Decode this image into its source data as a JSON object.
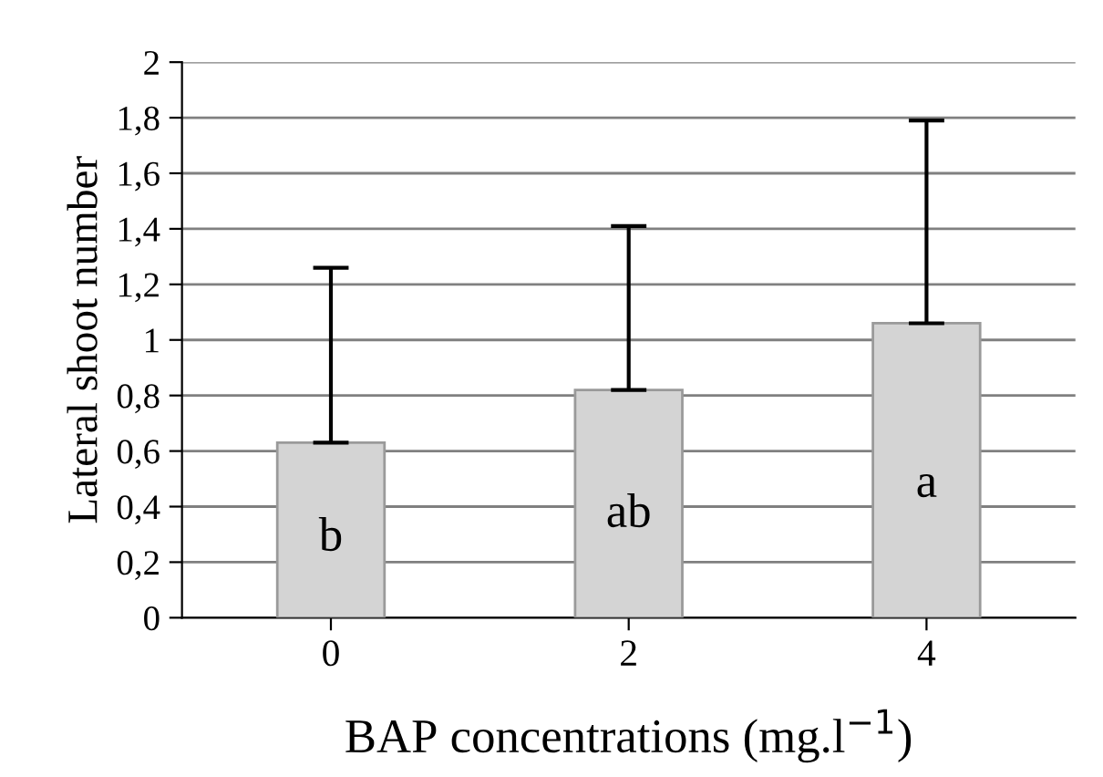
{
  "chart_data": {
    "type": "bar",
    "categories": [
      "0",
      "2",
      "4"
    ],
    "values": [
      0.63,
      0.82,
      1.06
    ],
    "errors": [
      [
        0.63,
        1.26
      ],
      [
        0.82,
        1.41
      ],
      [
        1.06,
        1.79
      ]
    ],
    "color": "#d4d4d4",
    "ylabel": "Lateral shoot number",
    "xlabel": "BAP concentrations (mg.l$^{−1}$)",
    "ylim": [
      0,
      2
    ],
    "yticks": [
      0,
      {
        "value": 0.2,
        "label": "0,2"
      },
      {
        "value": 0.4,
        "label": "0,4"
      },
      {
        "value": 0.6,
        "label": "0,6"
      },
      {
        "value": 0.8,
        "label": "0,8"
      },
      1,
      {
        "value": 1.2,
        "label": "1,2"
      },
      {
        "value": 1.4,
        "label": "1,4"
      },
      {
        "value": 1.6,
        "label": "1,6"
      },
      {
        "value": 1.8,
        "label": "1,8"
      },
      2
    ],
    "grid": "y",
    "annotations": [
      "b",
      "ab",
      "a"
    ]
  }
}
